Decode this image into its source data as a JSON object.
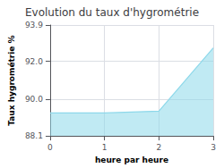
{
  "chart_data": {
    "type": "area",
    "title": "Evolution du taux d'hygrométrie",
    "xlabel": "heure par heure",
    "ylabel": "Taux hygrométrie %",
    "x": [
      0,
      1,
      2,
      3
    ],
    "values": [
      89.3,
      89.3,
      89.4,
      92.7
    ],
    "color": "#8dd8ea",
    "xlim": [
      0,
      3
    ],
    "xticks": [
      0,
      1,
      2,
      3
    ],
    "ylim": [
      88.1,
      93.9
    ],
    "yticks": [
      88.1,
      {
        "value": 90.0,
        "label": "90.0"
      },
      {
        "value": 92.0,
        "label": "92.0"
      },
      93.9
    ],
    "grid": true
  }
}
